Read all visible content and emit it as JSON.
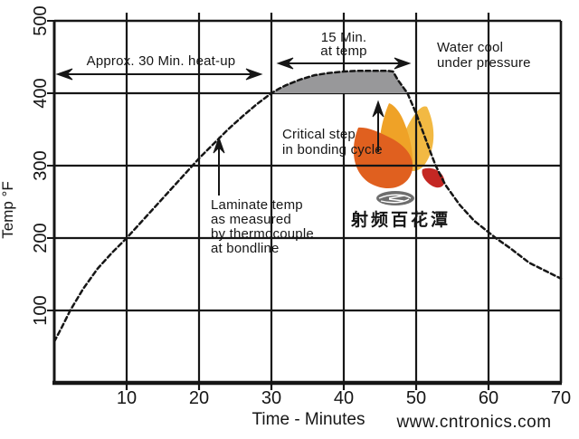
{
  "axes": {
    "x_title": "Time - Minutes",
    "y_title": "Temp °F"
  },
  "annotations": {
    "heatup": "Approx. 30 Min. heat-up",
    "attemp_line1": "15 Min.",
    "attemp_line2": "at temp",
    "watercool_line1": "Water cool",
    "watercool_line2": "under pressure",
    "critical_line1": "Critical step",
    "critical_line2": "in bonding cycle",
    "laminate_line1": "Laminate temp",
    "laminate_line2": "as measured",
    "laminate_line3": "by thermocouple",
    "laminate_line4": "at bondline"
  },
  "watermark": {
    "brand_text": "射频百花潭",
    "url": "www.cntronics.com",
    "url_color": "#b5e0a3",
    "brand_color": "#3a3a3a",
    "flame_colors": {
      "left_petal": "#e0601f",
      "middle_petal": "#efa227",
      "right_petal": "#f2b943",
      "red_drop": "#c42723",
      "disc": "#6e6e6e"
    }
  },
  "chart_data": {
    "type": "line",
    "xlabel": "Time - Minutes",
    "ylabel": "Temp °F",
    "xlim": [
      0,
      70
    ],
    "ylim": [
      0,
      500
    ],
    "x_ticks": [
      10,
      20,
      30,
      40,
      50,
      60,
      70
    ],
    "y_ticks": [
      100,
      200,
      300,
      400,
      500
    ],
    "grid": true,
    "line_color": "#161616",
    "series": [
      {
        "name": "Laminate temp as measured by thermocouple at bondline",
        "style": "dashed",
        "points": [
          [
            0,
            57
          ],
          [
            1,
            76
          ],
          [
            2.2,
            100
          ],
          [
            4,
            130
          ],
          [
            6,
            158
          ],
          [
            8,
            180
          ],
          [
            10,
            200
          ],
          [
            12,
            222
          ],
          [
            14,
            244
          ],
          [
            16,
            266
          ],
          [
            18,
            288
          ],
          [
            20,
            310
          ],
          [
            22,
            330
          ],
          [
            24,
            350
          ],
          [
            26,
            368
          ],
          [
            28,
            385
          ],
          [
            30,
            400
          ],
          [
            31,
            406
          ],
          [
            32,
            411
          ],
          [
            34,
            419
          ],
          [
            36,
            425
          ],
          [
            38,
            428
          ],
          [
            40,
            430
          ],
          [
            42,
            431
          ],
          [
            44,
            431
          ],
          [
            46,
            431
          ],
          [
            46.8,
            430
          ],
          [
            47.5,
            418
          ],
          [
            48.8,
            400
          ],
          [
            50,
            372
          ],
          [
            52,
            318
          ],
          [
            52.7,
            300
          ],
          [
            54,
            274
          ],
          [
            56,
            246
          ],
          [
            58,
            224
          ],
          [
            61,
            200
          ],
          [
            63,
            186
          ],
          [
            65.6,
            166
          ],
          [
            68,
            154
          ],
          [
            70,
            144
          ]
        ]
      }
    ],
    "shaded_region": {
      "description": "15 Min. at temp (area above 400 °F during dwell)",
      "above_temp": 400,
      "from_x": 30,
      "to_x": 48.8,
      "color": "#98989a"
    },
    "annotation_notes": [
      {
        "text": "Approx. 30 Min. heat-up",
        "type": "double-arrow-span",
        "x_range": [
          0.5,
          28.5
        ]
      },
      {
        "text": "15 Min. at temp",
        "type": "double-arrow-span",
        "x_range": [
          31,
          49
        ]
      },
      {
        "text": "Water cool under pressure",
        "type": "label",
        "x_range": [
          53,
          70
        ]
      },
      {
        "text": "Critical step in bonding cycle",
        "type": "arrow-callout",
        "points_to_x": 45
      },
      {
        "text": "Laminate temp as measured by thermocouple at bondline",
        "type": "arrow-callout",
        "points_to_x": 23
      }
    ]
  }
}
